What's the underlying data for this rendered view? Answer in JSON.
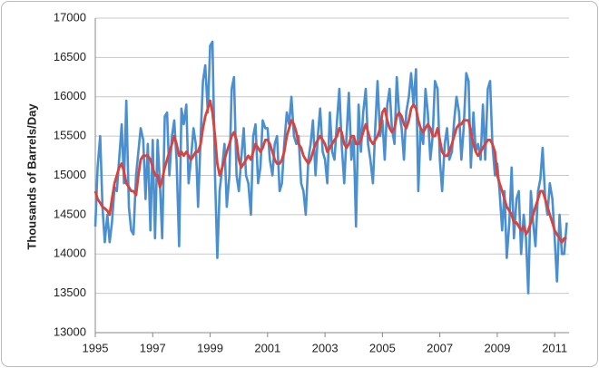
{
  "chart_data": {
    "type": "line",
    "y_label": "Thousands of Barrels/Day",
    "xlim": [
      1995,
      2011.5
    ],
    "xticks": [
      1995,
      1997,
      1999,
      2001,
      2003,
      2005,
      2007,
      2009,
      2011
    ],
    "ylim": [
      13000,
      17000
    ],
    "yticks": [
      13000,
      13500,
      14000,
      14500,
      15000,
      15500,
      16000,
      16500,
      17000
    ],
    "grid": true,
    "x": [
      1995,
      1995.08,
      1995.17,
      1995.25,
      1995.33,
      1995.42,
      1995.5,
      1995.58,
      1995.67,
      1995.75,
      1995.83,
      1995.92,
      1996,
      1996.08,
      1996.17,
      1996.25,
      1996.33,
      1996.42,
      1996.5,
      1996.58,
      1996.67,
      1996.75,
      1996.83,
      1996.92,
      1997,
      1997.08,
      1997.17,
      1997.25,
      1997.33,
      1997.42,
      1997.5,
      1997.58,
      1997.67,
      1997.75,
      1997.83,
      1997.92,
      1998,
      1998.08,
      1998.17,
      1998.25,
      1998.33,
      1998.42,
      1998.5,
      1998.58,
      1998.67,
      1998.75,
      1998.83,
      1998.92,
      1999,
      1999.08,
      1999.17,
      1999.25,
      1999.33,
      1999.42,
      1999.5,
      1999.58,
      1999.67,
      1999.75,
      1999.83,
      1999.92,
      2000,
      2000.08,
      2000.17,
      2000.25,
      2000.33,
      2000.42,
      2000.5,
      2000.58,
      2000.67,
      2000.75,
      2000.83,
      2000.92,
      2001,
      2001.08,
      2001.17,
      2001.25,
      2001.33,
      2001.42,
      2001.5,
      2001.58,
      2001.67,
      2001.75,
      2001.83,
      2001.92,
      2002,
      2002.08,
      2002.17,
      2002.25,
      2002.33,
      2002.42,
      2002.5,
      2002.58,
      2002.67,
      2002.75,
      2002.83,
      2002.92,
      2003,
      2003.08,
      2003.17,
      2003.25,
      2003.33,
      2003.42,
      2003.5,
      2003.58,
      2003.67,
      2003.75,
      2003.83,
      2003.92,
      2004,
      2004.08,
      2004.17,
      2004.25,
      2004.33,
      2004.42,
      2004.5,
      2004.58,
      2004.67,
      2004.75,
      2004.83,
      2004.92,
      2005,
      2005.08,
      2005.17,
      2005.25,
      2005.33,
      2005.42,
      2005.5,
      2005.58,
      2005.67,
      2005.75,
      2005.83,
      2005.92,
      2006,
      2006.08,
      2006.17,
      2006.25,
      2006.33,
      2006.42,
      2006.5,
      2006.58,
      2006.67,
      2006.75,
      2006.83,
      2006.92,
      2007,
      2007.08,
      2007.17,
      2007.25,
      2007.33,
      2007.42,
      2007.5,
      2007.58,
      2007.67,
      2007.75,
      2007.83,
      2007.92,
      2008,
      2008.08,
      2008.17,
      2008.25,
      2008.33,
      2008.42,
      2008.5,
      2008.58,
      2008.67,
      2008.75,
      2008.83,
      2008.92,
      2009,
      2009.08,
      2009.17,
      2009.25,
      2009.33,
      2009.42,
      2009.5,
      2009.58,
      2009.67,
      2009.75,
      2009.83,
      2009.92,
      2010,
      2010.08,
      2010.17,
      2010.25,
      2010.33,
      2010.42,
      2010.5,
      2010.58,
      2010.67,
      2010.75,
      2010.83,
      2010.92,
      2011,
      2011.08,
      2011.17,
      2011.25,
      2011.33,
      2011.42
    ],
    "series": [
      {
        "color": "#4a8fd0",
        "values": [
          14350,
          15100,
          15500,
          14600,
          14150,
          14500,
          14150,
          14400,
          14850,
          14800,
          15200,
          15650,
          14900,
          15950,
          14600,
          14300,
          14250,
          15000,
          15300,
          15600,
          15450,
          14700,
          15400,
          14300,
          15450,
          14200,
          15450,
          14900,
          14200,
          15750,
          15800,
          15000,
          15500,
          15700,
          15200,
          14100,
          15850,
          15650,
          15900,
          14900,
          15200,
          15600,
          15400,
          14600,
          15500,
          16200,
          16400,
          15800,
          16650,
          16700,
          15000,
          13950,
          14800,
          15100,
          15400,
          14600,
          15000,
          16100,
          16250,
          15000,
          14800,
          15200,
          15600,
          15000,
          14900,
          14500,
          15500,
          15650,
          14900,
          15100,
          15700,
          15600,
          15600,
          15200,
          15000,
          15400,
          15500,
          14800,
          14900,
          15400,
          15800,
          15650,
          16000,
          15500,
          15400,
          15500,
          14900,
          14800,
          14500,
          15200,
          15400,
          15700,
          15000,
          15500,
          15850,
          15300,
          15200,
          14900,
          15800,
          15300,
          15200,
          15700,
          16100,
          15400,
          14900,
          15500,
          16050,
          15200,
          15500,
          14350,
          15900,
          15300,
          15800,
          16100,
          15400,
          15200,
          14900,
          15600,
          16200,
          15500,
          15700,
          15200,
          15900,
          16100,
          15600,
          15400,
          16250,
          15800,
          15600,
          15200,
          15800,
          16000,
          16300,
          15900,
          16350,
          14800,
          15600,
          15400,
          16100,
          15800,
          15200,
          15500,
          16200,
          16100,
          15200,
          14800,
          15400,
          15600,
          15200,
          15300,
          15700,
          16000,
          15800,
          15200,
          15600,
          16300,
          16200,
          15100,
          15800,
          15300,
          15400,
          15200,
          15900,
          15200,
          16100,
          16200,
          15400,
          15000,
          15150,
          14800,
          14300,
          14800,
          13950,
          14400,
          15100,
          14200,
          14700,
          14800,
          14000,
          14500,
          14200,
          13500,
          14800,
          14400,
          14100,
          14800,
          14950,
          15350,
          14700,
          14500,
          14900,
          14700,
          14200,
          13650,
          14500,
          14000,
          14000,
          14400
        ]
      },
      {
        "color": "#d9423d",
        "values": [
          14800,
          14700,
          14650,
          14600,
          14580,
          14550,
          14500,
          14700,
          14900,
          15000,
          15100,
          15150,
          15050,
          14900,
          14850,
          14800,
          14800,
          14750,
          15000,
          15200,
          15250,
          15250,
          15250,
          15200,
          15100,
          15000,
          15000,
          14850,
          14950,
          15100,
          15200,
          15300,
          15400,
          15500,
          15400,
          15250,
          15300,
          15250,
          15300,
          15250,
          15200,
          15250,
          15300,
          15300,
          15400,
          15600,
          15750,
          15850,
          15950,
          15800,
          15500,
          15150,
          15000,
          15100,
          15200,
          15300,
          15400,
          15500,
          15550,
          15450,
          15200,
          15100,
          15150,
          15200,
          15250,
          15200,
          15300,
          15400,
          15350,
          15300,
          15350,
          15450,
          15450,
          15400,
          15300,
          15200,
          15150,
          15150,
          15200,
          15300,
          15500,
          15600,
          15700,
          15650,
          15550,
          15400,
          15350,
          15250,
          15200,
          15150,
          15200,
          15300,
          15400,
          15450,
          15500,
          15450,
          15400,
          15300,
          15350,
          15400,
          15450,
          15500,
          15600,
          15550,
          15400,
          15350,
          15400,
          15500,
          15500,
          15400,
          15400,
          15450,
          15550,
          15650,
          15550,
          15450,
          15400,
          15450,
          15500,
          15600,
          15800,
          15850,
          15700,
          15600,
          15550,
          15600,
          15750,
          15800,
          15750,
          15650,
          15600,
          15700,
          15850,
          15900,
          15850,
          15700,
          15600,
          15550,
          15600,
          15650,
          15600,
          15500,
          15500,
          15600,
          15450,
          15300,
          15250,
          15250,
          15300,
          15400,
          15500,
          15600,
          15650,
          15650,
          15700,
          15700,
          15700,
          15550,
          15400,
          15300,
          15250,
          15300,
          15350,
          15400,
          15450,
          15450,
          15400,
          15300,
          15000,
          14900,
          14800,
          14700,
          14600,
          14550,
          14500,
          14400,
          14400,
          14350,
          14300,
          14350,
          14250,
          14300,
          14400,
          14500,
          14600,
          14700,
          14800,
          14800,
          14700,
          14600,
          14500,
          14400,
          14300,
          14250,
          14200,
          14150,
          14200,
          14200
        ]
      }
    ]
  }
}
